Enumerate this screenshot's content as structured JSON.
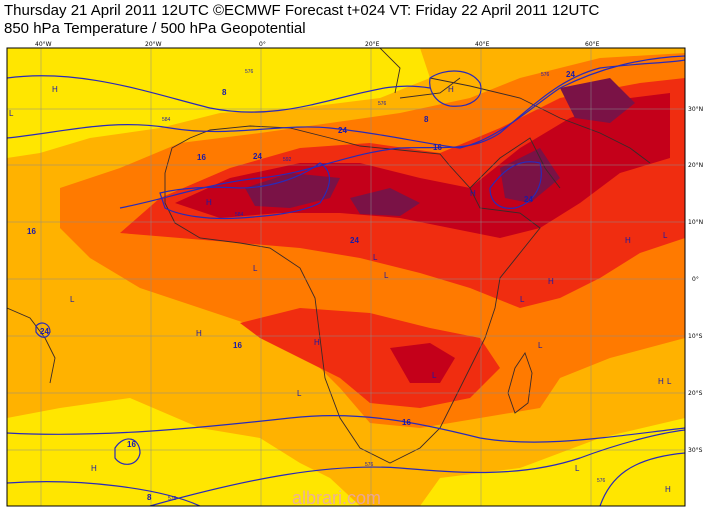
{
  "header": {
    "title_line1": "Thursday 21 April 2011 12UTC ©ECMWF Forecast t+024 VT: Friday 22 April 2011 12UTC",
    "title_line2": "850 hPa Temperature / 500 hPa Geopotential"
  },
  "axes": {
    "longitude_ticks": [
      "40°W",
      "20°W",
      "0°",
      "20°E",
      "40°E",
      "60°E"
    ],
    "latitude_ticks": [
      "30°N",
      "20°N",
      "10°N",
      "0°",
      "10°S",
      "20°S",
      "30°S"
    ]
  },
  "temperature_labels": [
    "8",
    "24",
    "24",
    "16",
    "16",
    "24",
    "16",
    "24",
    "24",
    "16",
    "16",
    "8",
    "16",
    "8",
    "24"
  ],
  "geopotential_labels": [
    "576",
    "576",
    "584",
    "592",
    "576",
    "584",
    "576",
    "576",
    "576"
  ],
  "pressure_centers": [
    "H",
    "H",
    "L",
    "L",
    "H",
    "H",
    "L",
    "L",
    "H",
    "L",
    "H",
    "L",
    "H",
    "L",
    "H",
    "L",
    "L",
    "H",
    "L",
    "L",
    "H",
    "H",
    "L"
  ],
  "colors": {
    "band_below_8": "#ffe600",
    "band_8_16": "#ffb200",
    "band_16_24": "#ff7a00",
    "band_24_28": "#f02d10",
    "band_28_32": "#c4001a",
    "band_above_32": "#7a1246",
    "coastline": "#3a2a2a",
    "contour": "#2a2ab8",
    "grid": "#8c8c8c"
  },
  "watermark": "albrari.com"
}
